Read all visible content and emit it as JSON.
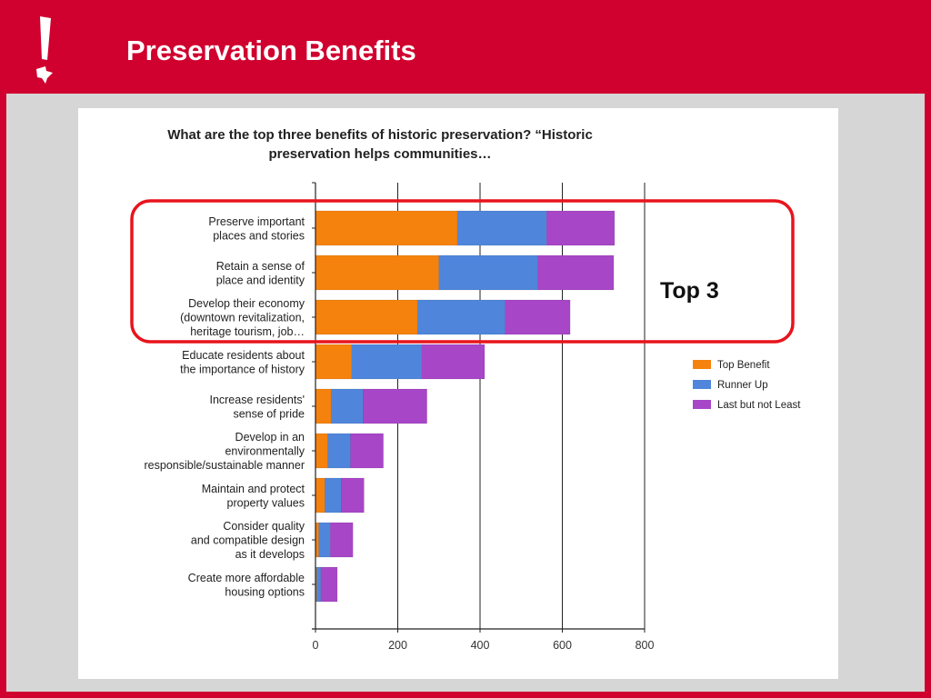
{
  "slide": {
    "title": "Preservation Benefits",
    "accent_color": "#d0012f",
    "logo_icon": "exclamation-texas-icon"
  },
  "highlight": {
    "label": "Top 3",
    "color": "#e8141c"
  },
  "chart_data": {
    "type": "bar",
    "orientation": "horizontal",
    "stacked": true,
    "title": "What are the top three benefits of historic preservation? “Historic preservation helps communities…",
    "title_lines": [
      "What are the top three benefits of historic preservation? “Historic",
      "preservation helps communities…"
    ],
    "categories": [
      "Preserve important places and stories",
      "Retain a sense of place and identity",
      "Develop their economy (downtown revitalization, heritage tourism, job…",
      "Educate residents about the importance of history",
      "Increase residents' sense of pride",
      "Develop in an environmentally responsible/sustainable manner",
      "Maintain and protect property values",
      "Consider quality and compatible design as it develops",
      "Create more affordable housing options"
    ],
    "category_lines": [
      [
        "Preserve important",
        "places and stories"
      ],
      [
        "Retain a sense of",
        "place and identity"
      ],
      [
        "Develop their economy",
        "(downtown revitalization,",
        "heritage tourism, job…"
      ],
      [
        "Educate residents about",
        "the importance of history"
      ],
      [
        "Increase residents'",
        "sense of pride"
      ],
      [
        "Develop in an",
        "environmentally",
        "responsible/sustainable manner"
      ],
      [
        "Maintain and protect",
        "property values"
      ],
      [
        "Consider quality",
        "and compatible design",
        "as it develops"
      ],
      [
        "Create more affordable",
        "housing options"
      ]
    ],
    "series": [
      {
        "name": "Top Benefit",
        "color": "#f5820d",
        "values": [
          345,
          300,
          248,
          88,
          38,
          30,
          23,
          8,
          3
        ]
      },
      {
        "name": "Runner Up",
        "color": "#4f86db",
        "values": [
          217,
          240,
          213,
          170,
          78,
          55,
          40,
          28,
          10
        ]
      },
      {
        "name": "Last but not Least",
        "color": "#a846c8",
        "values": [
          165,
          185,
          158,
          153,
          155,
          80,
          55,
          55,
          40
        ]
      }
    ],
    "xlim": [
      0,
      800
    ],
    "xticks": [
      0,
      200,
      400,
      600,
      800
    ],
    "grid": true,
    "legend": "right"
  }
}
